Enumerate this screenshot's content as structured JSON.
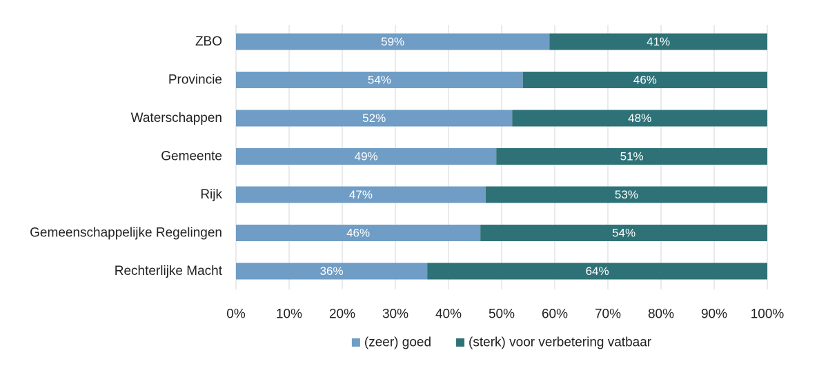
{
  "chart_data": {
    "type": "bar",
    "orientation": "horizontal",
    "stacked": true,
    "percent_stacked": true,
    "categories": [
      "ZBO",
      "Provincie",
      "Waterschappen",
      "Gemeente",
      "Rijk",
      "Gemeenschappelijke Regelingen",
      "Rechterlijke Macht"
    ],
    "series": [
      {
        "name": "(zeer) goed",
        "color": "#6f9dc5",
        "values": [
          59,
          54,
          52,
          49,
          47,
          46,
          36
        ],
        "labels": [
          "59%",
          "54%",
          "52%",
          "49%",
          "47%",
          "46%",
          "36%"
        ]
      },
      {
        "name": "(sterk) voor verbetering vatbaar",
        "color": "#2e7277",
        "values": [
          41,
          46,
          48,
          51,
          53,
          54,
          64
        ],
        "labels": [
          "41%",
          "46%",
          "48%",
          "51%",
          "53%",
          "54%",
          "64%"
        ]
      }
    ],
    "xlim": [
      0,
      100
    ],
    "x_ticks": [
      "0%",
      "10%",
      "20%",
      "30%",
      "40%",
      "50%",
      "60%",
      "70%",
      "80%",
      "90%",
      "100%"
    ],
    "title": "",
    "xlabel": "",
    "ylabel": "",
    "grid": true,
    "legend_position": "bottom"
  }
}
